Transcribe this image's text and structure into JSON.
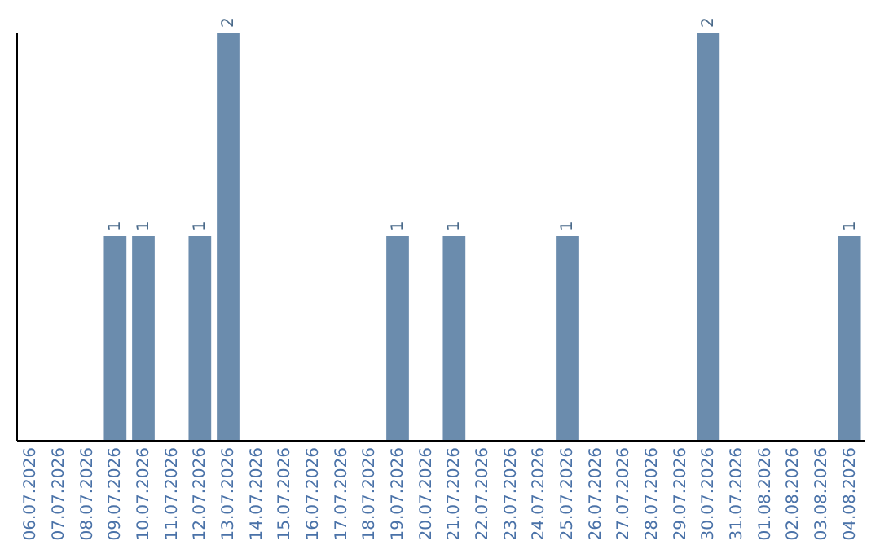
{
  "chart_data": {
    "type": "bar",
    "categories": [
      "06.07.2026",
      "07.07.2026",
      "08.07.2026",
      "09.07.2026",
      "10.07.2026",
      "11.07.2026",
      "12.07.2026",
      "13.07.2026",
      "14.07.2026",
      "15.07.2026",
      "16.07.2026",
      "17.07.2026",
      "18.07.2026",
      "19.07.2026",
      "20.07.2026",
      "21.07.2026",
      "22.07.2026",
      "23.07.2026",
      "24.07.2026",
      "25.07.2026",
      "26.07.2026",
      "27.07.2026",
      "28.07.2026",
      "29.07.2026",
      "30.07.2026",
      "31.07.2026",
      "01.08.2026",
      "02.08.2026",
      "03.08.2026",
      "04.08.2026"
    ],
    "values": [
      null,
      null,
      null,
      1,
      1,
      null,
      1,
      2,
      null,
      null,
      null,
      null,
      null,
      1,
      null,
      1,
      null,
      null,
      null,
      1,
      null,
      null,
      null,
      null,
      2,
      null,
      null,
      null,
      null,
      1
    ],
    "color": "#6b8cad",
    "data_labels": true,
    "tick_labels": "x"
  }
}
